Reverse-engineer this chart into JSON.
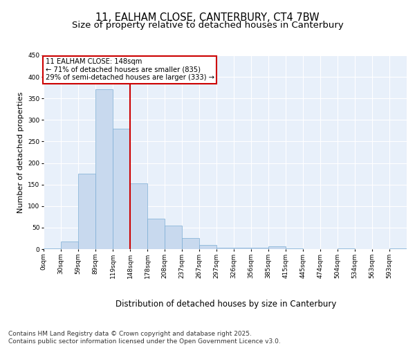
{
  "title1": "11, EALHAM CLOSE, CANTERBURY, CT4 7BW",
  "title2": "Size of property relative to detached houses in Canterbury",
  "xlabel": "Distribution of detached houses by size in Canterbury",
  "ylabel": "Number of detached properties",
  "bar_color": "#c8d9ee",
  "bar_edge_color": "#7aacd4",
  "background_color": "#e8f0fa",
  "grid_color": "#ffffff",
  "vline_color": "#cc0000",
  "annotation_text": "11 EALHAM CLOSE: 148sqm\n← 71% of detached houses are smaller (835)\n29% of semi-detached houses are larger (333) →",
  "annotation_box_color": "#cc0000",
  "bins": [
    "0sqm",
    "30sqm",
    "59sqm",
    "89sqm",
    "119sqm",
    "148sqm",
    "178sqm",
    "208sqm",
    "237sqm",
    "267sqm",
    "297sqm",
    "326sqm",
    "356sqm",
    "385sqm",
    "415sqm",
    "445sqm",
    "474sqm",
    "504sqm",
    "534sqm",
    "563sqm",
    "593sqm"
  ],
  "values": [
    2,
    18,
    175,
    372,
    280,
    152,
    71,
    55,
    25,
    9,
    4,
    3,
    4,
    6,
    1,
    0,
    0,
    1,
    0,
    0,
    1
  ],
  "ylim": [
    0,
    450
  ],
  "yticks": [
    0,
    50,
    100,
    150,
    200,
    250,
    300,
    350,
    400,
    450
  ],
  "footer": "Contains HM Land Registry data © Crown copyright and database right 2025.\nContains public sector information licensed under the Open Government Licence v3.0.",
  "title1_fontsize": 10.5,
  "title2_fontsize": 9.5,
  "xlabel_fontsize": 8.5,
  "ylabel_fontsize": 8,
  "tick_fontsize": 6.5,
  "footer_fontsize": 6.5
}
